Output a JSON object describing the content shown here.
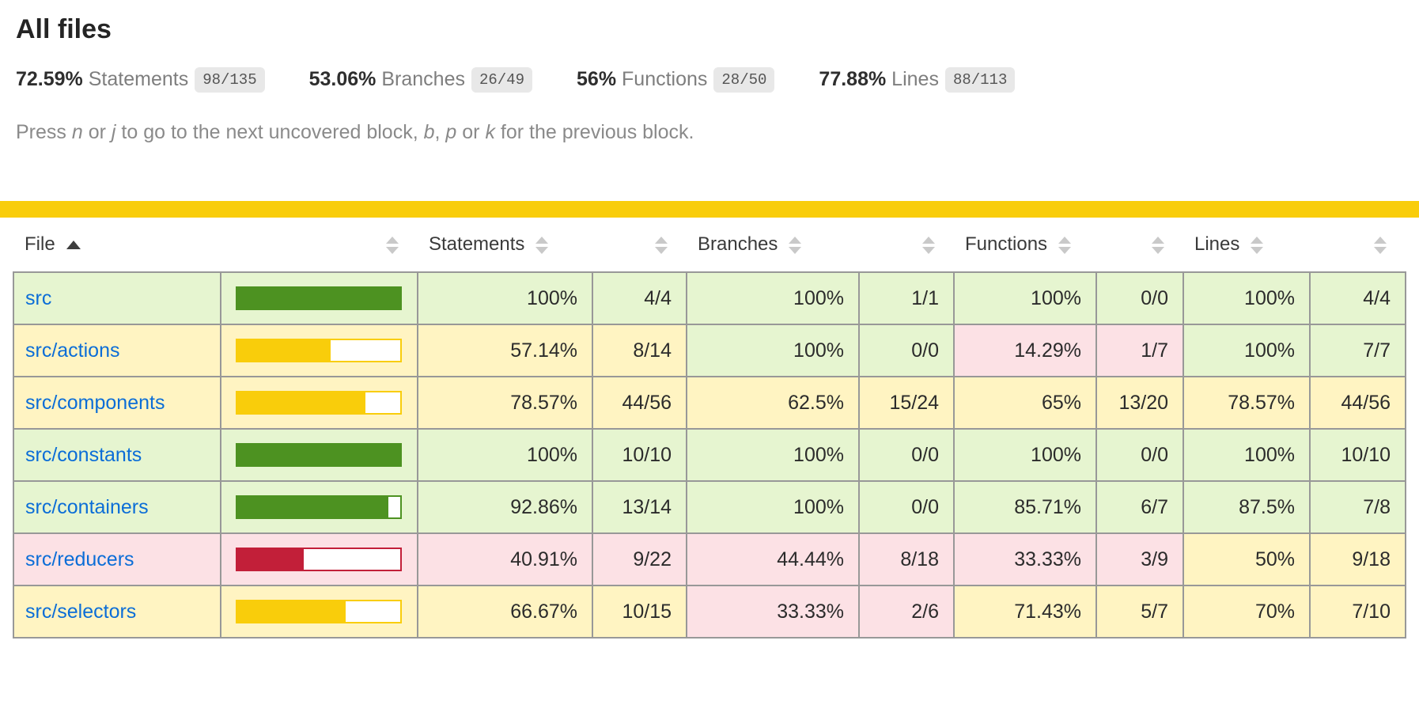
{
  "colors": {
    "status_bar": "#f9cd0b",
    "high_bg": "#e6f5d0",
    "medium_bg": "#fff4c2",
    "low_bg": "#fce1e5",
    "bar_fill_high": "#4d9221",
    "bar_fill_medium": "#f9cd0b",
    "bar_fill_low": "#c21f39",
    "link": "#0b6dd7",
    "fraction_badge_bg": "#e8e8e8"
  },
  "header": {
    "title": "All files",
    "metrics": [
      {
        "pct": "72.59%",
        "label": "Statements",
        "fraction": "98/135"
      },
      {
        "pct": "53.06%",
        "label": "Branches",
        "fraction": "26/49"
      },
      {
        "pct": "56%",
        "label": "Functions",
        "fraction": "28/50"
      },
      {
        "pct": "77.88%",
        "label": "Lines",
        "fraction": "88/113"
      }
    ],
    "keyboard_hint_segments": [
      {
        "text": "Press ",
        "italic": false
      },
      {
        "text": "n",
        "italic": true
      },
      {
        "text": " or ",
        "italic": false
      },
      {
        "text": "j",
        "italic": true
      },
      {
        "text": " to go to the next uncovered block, ",
        "italic": false
      },
      {
        "text": "b",
        "italic": true
      },
      {
        "text": ", ",
        "italic": false
      },
      {
        "text": "p",
        "italic": true
      },
      {
        "text": " or ",
        "italic": false
      },
      {
        "text": "k",
        "italic": true
      },
      {
        "text": " for the previous block.",
        "italic": false
      }
    ]
  },
  "table": {
    "columns": [
      {
        "key": "file",
        "label": "File",
        "type": "file",
        "sorted": "asc"
      },
      {
        "key": "pic",
        "label": "",
        "type": "pic"
      },
      {
        "key": "statements-pct",
        "label": "Statements",
        "type": "pct"
      },
      {
        "key": "statements-abs",
        "label": "",
        "type": "abs"
      },
      {
        "key": "branches-pct",
        "label": "Branches",
        "type": "pct"
      },
      {
        "key": "branches-abs",
        "label": "",
        "type": "abs"
      },
      {
        "key": "functions-pct",
        "label": "Functions",
        "type": "pct"
      },
      {
        "key": "functions-abs",
        "label": "",
        "type": "abs"
      },
      {
        "key": "lines-pct",
        "label": "Lines",
        "type": "pct"
      },
      {
        "key": "lines-abs",
        "label": "",
        "type": "abs"
      }
    ],
    "rows": [
      {
        "file": "src",
        "row_level": "high",
        "bar_pct": 100,
        "bar_level": "high",
        "statements": {
          "pct": "100%",
          "abs": "4/4",
          "level": "high"
        },
        "branches": {
          "pct": "100%",
          "abs": "1/1",
          "level": "high"
        },
        "functions": {
          "pct": "100%",
          "abs": "0/0",
          "level": "high"
        },
        "lines": {
          "pct": "100%",
          "abs": "4/4",
          "level": "high"
        }
      },
      {
        "file": "src/actions",
        "row_level": "medium",
        "bar_pct": 57.14,
        "bar_level": "medium",
        "statements": {
          "pct": "57.14%",
          "abs": "8/14",
          "level": "medium"
        },
        "branches": {
          "pct": "100%",
          "abs": "0/0",
          "level": "high"
        },
        "functions": {
          "pct": "14.29%",
          "abs": "1/7",
          "level": "low"
        },
        "lines": {
          "pct": "100%",
          "abs": "7/7",
          "level": "high"
        }
      },
      {
        "file": "src/components",
        "row_level": "medium",
        "bar_pct": 78.57,
        "bar_level": "medium",
        "statements": {
          "pct": "78.57%",
          "abs": "44/56",
          "level": "medium"
        },
        "branches": {
          "pct": "62.5%",
          "abs": "15/24",
          "level": "medium"
        },
        "functions": {
          "pct": "65%",
          "abs": "13/20",
          "level": "medium"
        },
        "lines": {
          "pct": "78.57%",
          "abs": "44/56",
          "level": "medium"
        }
      },
      {
        "file": "src/constants",
        "row_level": "high",
        "bar_pct": 100,
        "bar_level": "high",
        "statements": {
          "pct": "100%",
          "abs": "10/10",
          "level": "high"
        },
        "branches": {
          "pct": "100%",
          "abs": "0/0",
          "level": "high"
        },
        "functions": {
          "pct": "100%",
          "abs": "0/0",
          "level": "high"
        },
        "lines": {
          "pct": "100%",
          "abs": "10/10",
          "level": "high"
        }
      },
      {
        "file": "src/containers",
        "row_level": "high",
        "bar_pct": 92.86,
        "bar_level": "high",
        "statements": {
          "pct": "92.86%",
          "abs": "13/14",
          "level": "high"
        },
        "branches": {
          "pct": "100%",
          "abs": "0/0",
          "level": "high"
        },
        "functions": {
          "pct": "85.71%",
          "abs": "6/7",
          "level": "high"
        },
        "lines": {
          "pct": "87.5%",
          "abs": "7/8",
          "level": "high"
        }
      },
      {
        "file": "src/reducers",
        "row_level": "low",
        "bar_pct": 40.91,
        "bar_level": "low",
        "statements": {
          "pct": "40.91%",
          "abs": "9/22",
          "level": "low"
        },
        "branches": {
          "pct": "44.44%",
          "abs": "8/18",
          "level": "low"
        },
        "functions": {
          "pct": "33.33%",
          "abs": "3/9",
          "level": "low"
        },
        "lines": {
          "pct": "50%",
          "abs": "9/18",
          "level": "medium"
        }
      },
      {
        "file": "src/selectors",
        "row_level": "medium",
        "bar_pct": 66.67,
        "bar_level": "medium",
        "statements": {
          "pct": "66.67%",
          "abs": "10/15",
          "level": "medium"
        },
        "branches": {
          "pct": "33.33%",
          "abs": "2/6",
          "level": "low"
        },
        "functions": {
          "pct": "71.43%",
          "abs": "5/7",
          "level": "medium"
        },
        "lines": {
          "pct": "70%",
          "abs": "7/10",
          "level": "medium"
        }
      }
    ]
  }
}
